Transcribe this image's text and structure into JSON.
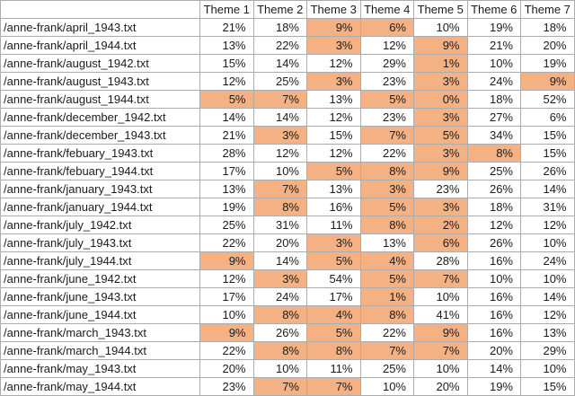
{
  "colors": {
    "highlight": "#F4B183",
    "border": "#ACACAC",
    "text": "#1B1B1B",
    "background": "#FFFFFF"
  },
  "table": {
    "corner_header": "",
    "column_headers": [
      "Theme 1",
      "Theme 2",
      "Theme 3",
      "Theme 4",
      "Theme 5",
      "Theme 6",
      "Theme 7"
    ],
    "rows": [
      {
        "file": "/anne-frank/april_1943.txt",
        "values": [
          "21%",
          "18%",
          "9%",
          "6%",
          "10%",
          "19%",
          "18%"
        ],
        "highlighted": [
          0,
          0,
          1,
          1,
          0,
          0,
          0
        ]
      },
      {
        "file": "/anne-frank/april_1944.txt",
        "values": [
          "13%",
          "22%",
          "3%",
          "12%",
          "9%",
          "21%",
          "20%"
        ],
        "highlighted": [
          0,
          0,
          1,
          0,
          1,
          0,
          0
        ]
      },
      {
        "file": "/anne-frank/august_1942.txt",
        "values": [
          "15%",
          "14%",
          "12%",
          "29%",
          "1%",
          "10%",
          "19%"
        ],
        "highlighted": [
          0,
          0,
          0,
          0,
          1,
          0,
          0
        ]
      },
      {
        "file": "/anne-frank/august_1943.txt",
        "values": [
          "12%",
          "25%",
          "3%",
          "23%",
          "3%",
          "24%",
          "9%"
        ],
        "highlighted": [
          0,
          0,
          1,
          0,
          1,
          0,
          1
        ]
      },
      {
        "file": "/anne-frank/august_1944.txt",
        "values": [
          "5%",
          "7%",
          "13%",
          "5%",
          "0%",
          "18%",
          "52%"
        ],
        "highlighted": [
          1,
          1,
          0,
          1,
          1,
          0,
          0
        ]
      },
      {
        "file": "/anne-frank/december_1942.txt",
        "values": [
          "14%",
          "14%",
          "12%",
          "23%",
          "3%",
          "27%",
          "6%"
        ],
        "highlighted": [
          0,
          0,
          0,
          0,
          1,
          0,
          0
        ]
      },
      {
        "file": "/anne-frank/december_1943.txt",
        "values": [
          "21%",
          "3%",
          "15%",
          "7%",
          "5%",
          "34%",
          "15%"
        ],
        "highlighted": [
          0,
          1,
          0,
          1,
          1,
          0,
          0
        ]
      },
      {
        "file": "/anne-frank/febuary_1943.txt",
        "values": [
          "28%",
          "12%",
          "12%",
          "22%",
          "3%",
          "8%",
          "15%"
        ],
        "highlighted": [
          0,
          0,
          0,
          0,
          1,
          1,
          0
        ]
      },
      {
        "file": "/anne-frank/febuary_1944.txt",
        "values": [
          "17%",
          "10%",
          "5%",
          "8%",
          "9%",
          "25%",
          "26%"
        ],
        "highlighted": [
          0,
          0,
          1,
          1,
          1,
          0,
          0
        ]
      },
      {
        "file": "/anne-frank/january_1943.txt",
        "values": [
          "13%",
          "7%",
          "13%",
          "3%",
          "23%",
          "26%",
          "14%"
        ],
        "highlighted": [
          0,
          1,
          0,
          1,
          0,
          0,
          0
        ]
      },
      {
        "file": "/anne-frank/january_1944.txt",
        "values": [
          "19%",
          "8%",
          "16%",
          "5%",
          "3%",
          "18%",
          "31%"
        ],
        "highlighted": [
          0,
          1,
          0,
          1,
          1,
          0,
          0
        ]
      },
      {
        "file": "/anne-frank/july_1942.txt",
        "values": [
          "25%",
          "31%",
          "11%",
          "8%",
          "2%",
          "12%",
          "12%"
        ],
        "highlighted": [
          0,
          0,
          0,
          1,
          1,
          0,
          0
        ]
      },
      {
        "file": "/anne-frank/july_1943.txt",
        "values": [
          "22%",
          "20%",
          "3%",
          "13%",
          "6%",
          "26%",
          "10%"
        ],
        "highlighted": [
          0,
          0,
          1,
          0,
          1,
          0,
          0
        ]
      },
      {
        "file": "/anne-frank/july_1944.txt",
        "values": [
          "9%",
          "14%",
          "5%",
          "4%",
          "28%",
          "16%",
          "24%"
        ],
        "highlighted": [
          1,
          0,
          1,
          1,
          0,
          0,
          0
        ]
      },
      {
        "file": "/anne-frank/june_1942.txt",
        "values": [
          "12%",
          "3%",
          "54%",
          "5%",
          "7%",
          "10%",
          "10%"
        ],
        "highlighted": [
          0,
          1,
          0,
          1,
          1,
          0,
          0
        ]
      },
      {
        "file": "/anne-frank/june_1943.txt",
        "values": [
          "17%",
          "24%",
          "17%",
          "1%",
          "10%",
          "16%",
          "14%"
        ],
        "highlighted": [
          0,
          0,
          0,
          1,
          0,
          0,
          0
        ]
      },
      {
        "file": "/anne-frank/june_1944.txt",
        "values": [
          "10%",
          "8%",
          "4%",
          "8%",
          "41%",
          "16%",
          "12%"
        ],
        "highlighted": [
          0,
          1,
          1,
          1,
          0,
          0,
          0
        ]
      },
      {
        "file": "/anne-frank/march_1943.txt",
        "values": [
          "9%",
          "26%",
          "5%",
          "22%",
          "9%",
          "16%",
          "13%"
        ],
        "highlighted": [
          1,
          0,
          1,
          0,
          1,
          0,
          0
        ]
      },
      {
        "file": "/anne-frank/march_1944.txt",
        "values": [
          "22%",
          "8%",
          "8%",
          "7%",
          "7%",
          "20%",
          "29%"
        ],
        "highlighted": [
          0,
          1,
          1,
          1,
          1,
          0,
          0
        ]
      },
      {
        "file": "/anne-frank/may_1943.txt",
        "values": [
          "20%",
          "10%",
          "11%",
          "25%",
          "10%",
          "14%",
          "10%"
        ],
        "highlighted": [
          0,
          0,
          0,
          0,
          0,
          0,
          0
        ]
      },
      {
        "file": "/anne-frank/may_1944.txt",
        "values": [
          "23%",
          "7%",
          "7%",
          "10%",
          "20%",
          "19%",
          "15%"
        ],
        "highlighted": [
          0,
          1,
          1,
          0,
          0,
          0,
          0
        ]
      }
    ]
  }
}
